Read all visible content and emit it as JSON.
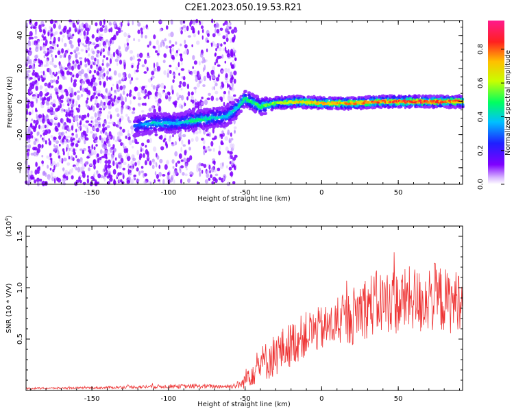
{
  "title": "C2E1.2023.050.19.53.R21",
  "colors": {
    "snr_line": "#ee3333",
    "axis": "#000000"
  },
  "chart_data": [
    {
      "type": "heatmap",
      "xlabel": "Height of straight line (km)",
      "ylabel": "Frequency (Hz)",
      "xlim": [
        -193,
        92
      ],
      "ylim": [
        -50,
        49
      ],
      "x_ticks": [
        -150,
        -100,
        -50,
        0,
        50
      ],
      "x_tick_labels": [
        "-150",
        "-100",
        "-50",
        "0",
        "50"
      ],
      "y_ticks": [
        -40,
        -20,
        0,
        20,
        40
      ],
      "y_tick_labels": [
        "-40",
        "-20",
        "0",
        "20",
        "40"
      ],
      "colorbar": {
        "label": "Normalized spectral amplitude",
        "range": [
          0,
          0.97
        ],
        "ticks": [
          0.0,
          0.2,
          0.4,
          0.6,
          0.8
        ],
        "tick_labels": [
          "0.0",
          "0.2",
          "0.4",
          "0.6",
          "0.8"
        ],
        "colormap": "rainbow"
      },
      "noise_region": {
        "x_range": [
          -193,
          -56
        ],
        "freq_range": [
          -50,
          49
        ],
        "amplitude": 0.05
      },
      "signal_ridge": [
        {
          "x": -122,
          "freq": -15,
          "amp": 0.3
        },
        {
          "x": -110,
          "freq": -13,
          "amp": 0.45
        },
        {
          "x": -95,
          "freq": -13,
          "amp": 0.4
        },
        {
          "x": -80,
          "freq": -11,
          "amp": 0.5
        },
        {
          "x": -62,
          "freq": -9,
          "amp": 0.4
        },
        {
          "x": -55,
          "freq": -4,
          "amp": 0.45
        },
        {
          "x": -50,
          "freq": 2,
          "amp": 0.5
        },
        {
          "x": -40,
          "freq": -3,
          "amp": 0.55
        },
        {
          "x": -30,
          "freq": -1,
          "amp": 0.6
        },
        {
          "x": -15,
          "freq": 0,
          "amp": 0.75
        },
        {
          "x": 0,
          "freq": -1,
          "amp": 0.75
        },
        {
          "x": 20,
          "freq": -1,
          "amp": 0.8
        },
        {
          "x": 40,
          "freq": 0,
          "amp": 0.85
        },
        {
          "x": 60,
          "freq": 0,
          "amp": 0.9
        },
        {
          "x": 80,
          "freq": 0,
          "amp": 0.85
        },
        {
          "x": 92,
          "freq": 0,
          "amp": 0.8
        }
      ]
    },
    {
      "type": "line",
      "xlabel": "Height of straight line (km)",
      "ylabel": "SNR (10 * V/V)",
      "y_multiplier_label": "(x10",
      "y_multiplier_exp": "4",
      "xlim": [
        -193,
        92
      ],
      "ylim": [
        0,
        1.6
      ],
      "x_ticks": [
        -150,
        -100,
        -50,
        0,
        50
      ],
      "x_tick_labels": [
        "-150",
        "-100",
        "-50",
        "0",
        "50"
      ],
      "y_ticks": [
        0.5,
        1.0,
        1.5
      ],
      "y_tick_labels": [
        "0.5",
        "1.0",
        "1.5"
      ],
      "series": [
        {
          "x": [
            -193,
            -150,
            -100,
            -60,
            -52,
            -48,
            -44,
            -40,
            -35,
            -30,
            -25,
            -20,
            -15,
            -10,
            -5,
            0,
            5,
            10,
            15,
            20,
            25,
            30,
            35,
            40,
            45,
            50,
            55,
            60,
            65,
            70,
            75,
            80,
            85,
            90,
            92
          ],
          "y": [
            0.02,
            0.025,
            0.04,
            0.04,
            0.06,
            0.15,
            0.2,
            0.25,
            0.3,
            0.35,
            0.4,
            0.45,
            0.5,
            0.55,
            0.58,
            0.6,
            0.62,
            0.65,
            0.68,
            0.72,
            0.8,
            0.82,
            0.85,
            0.85,
            0.88,
            0.85,
            0.88,
            0.9,
            0.85,
            0.92,
            0.9,
            0.88,
            0.85,
            0.9,
            0.85
          ],
          "noise_amplitude": [
            0.01,
            0.01,
            0.02,
            0.02,
            0.05,
            0.12,
            0.15,
            0.18,
            0.2,
            0.22,
            0.22,
            0.22,
            0.22,
            0.22,
            0.22,
            0.22,
            0.22,
            0.22,
            0.25,
            0.28,
            0.3,
            0.32,
            0.32,
            0.32,
            0.32,
            0.32,
            0.32,
            0.32,
            0.32,
            0.35,
            0.35,
            0.32,
            0.3,
            0.3,
            0.3
          ]
        }
      ]
    }
  ]
}
